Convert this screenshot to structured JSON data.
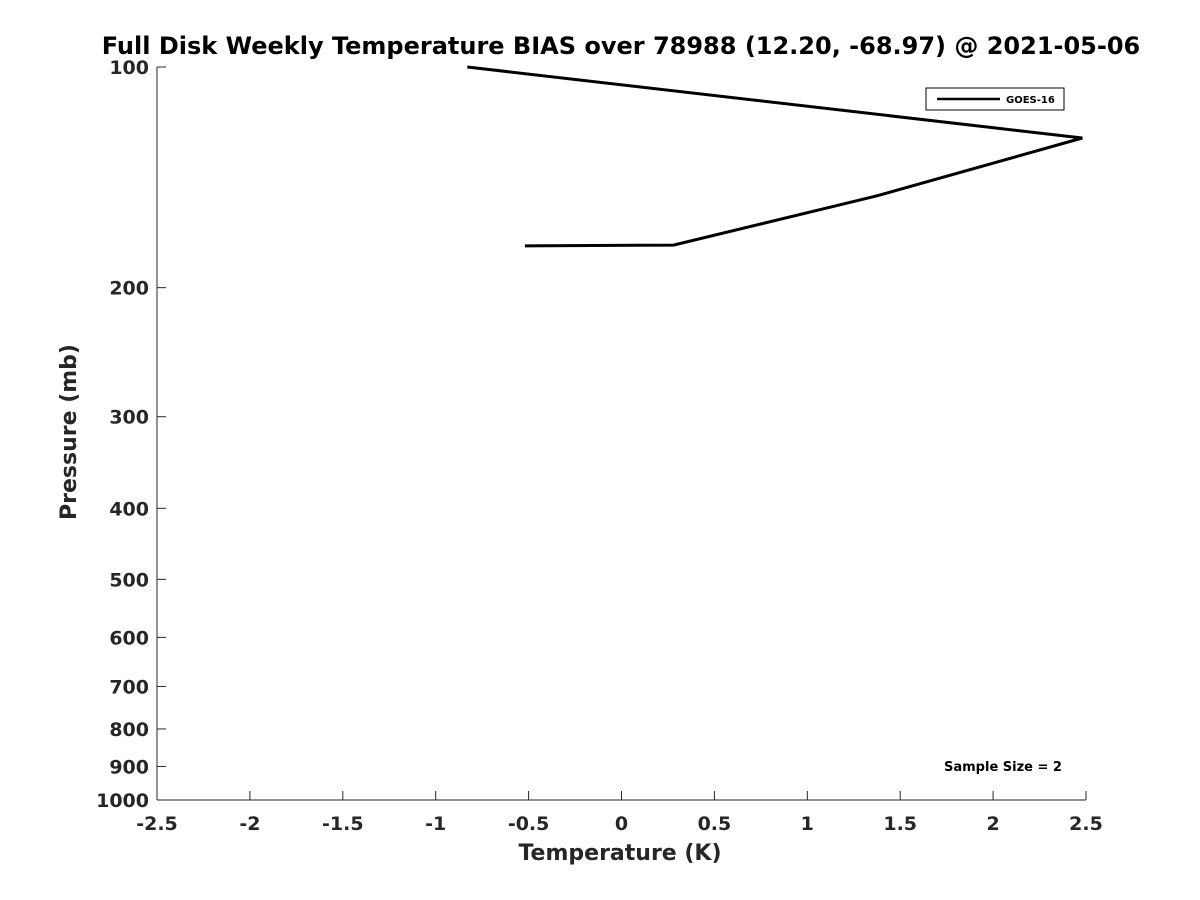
{
  "chart_data": {
    "type": "line",
    "title": "Full Disk Weekly Temperature BIAS over 78988 (12.20, -68.97) @ 2021-05-06",
    "xlabel": "Temperature (K)",
    "ylabel": "Pressure (mb)",
    "xlim": [
      -2.5,
      2.5
    ],
    "ylim": [
      100,
      1000
    ],
    "y_scale": "log",
    "y_reversed": true,
    "x_ticks": [
      -2.5,
      -2,
      -1.5,
      -1,
      -0.5,
      0,
      0.5,
      1,
      1.5,
      2,
      2.5
    ],
    "x_tick_labels": [
      "-2.5",
      "-2",
      "-1.5",
      "-1",
      "-0.5",
      "0",
      "0.5",
      "1",
      "1.5",
      "2",
      "2.5"
    ],
    "y_ticks": [
      100,
      200,
      300,
      400,
      500,
      600,
      700,
      800,
      900,
      1000
    ],
    "y_tick_labels": [
      "100",
      "200",
      "300",
      "400",
      "500",
      "600",
      "700",
      "800",
      "900",
      "1000"
    ],
    "grid": false,
    "legend_position": "top-right",
    "annotation": "Sample Size = 2",
    "series": [
      {
        "name": "GOES-16",
        "color": "#000000",
        "points": [
          {
            "x": -0.83,
            "p": 100
          },
          {
            "x": 2.48,
            "p": 125
          },
          {
            "x": 1.37,
            "p": 150
          },
          {
            "x": 0.28,
            "p": 175
          },
          {
            "x": -0.52,
            "p": 175.4
          },
          {
            "x": -0.52,
            "p": 175.4
          }
        ]
      }
    ]
  }
}
